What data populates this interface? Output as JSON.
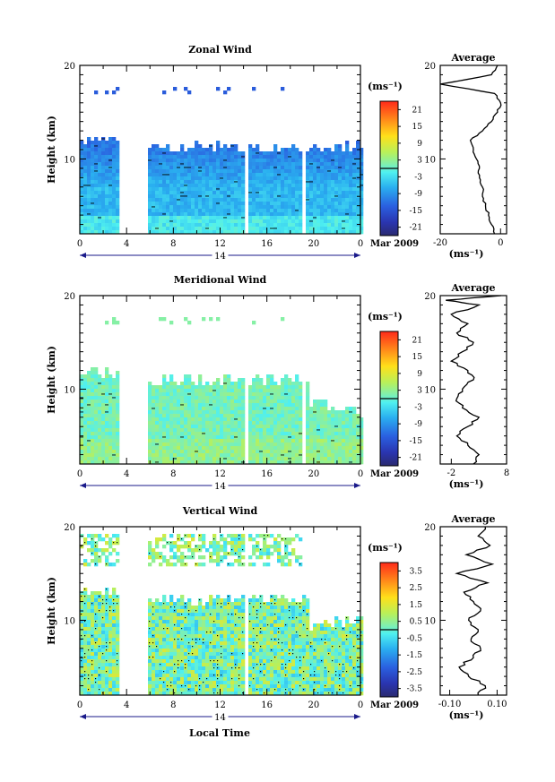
{
  "figure": {
    "x_label": "Local Time",
    "month_label": "Mar 2009",
    "day_label": "14",
    "profile_title": "Average",
    "unit": "(ms⁻¹)"
  },
  "chart_data": [
    {
      "type": "heatmap",
      "title": "Zonal Wind",
      "ylabel": "Height (km)",
      "xlabel": "Local Time",
      "x_ticks": [
        "0",
        "4",
        "8",
        "12",
        "16",
        "20",
        "0"
      ],
      "xlim": [
        0,
        24
      ],
      "y_ticks": [
        "20",
        "10"
      ],
      "ylim": [
        2,
        20
      ],
      "colorbar": {
        "unit": "(ms⁻¹)",
        "ticks": [
          "21",
          "15",
          "9",
          "3",
          "-3",
          "-9",
          "-15",
          "-21"
        ],
        "range": [
          -24,
          24
        ],
        "contour_at": 0
      },
      "missing_time_ranges": [
        [
          3.3,
          5.7
        ],
        [
          14.0,
          14.4
        ],
        [
          19.0,
          19.3
        ]
      ],
      "average_profile": {
        "x_ticks": [
          "-20",
          "0"
        ],
        "xlim": [
          -20,
          2
        ],
        "y_ticks": [
          "20",
          "10"
        ],
        "points": [
          [
            -2,
            2
          ],
          [
            -3,
            3
          ],
          [
            -4,
            4
          ],
          [
            -5,
            5
          ],
          [
            -6,
            6
          ],
          [
            -6,
            7
          ],
          [
            -7,
            8
          ],
          [
            -7,
            9
          ],
          [
            -8,
            10
          ],
          [
            -9,
            11
          ],
          [
            -10,
            12
          ],
          [
            -6,
            13
          ],
          [
            -3,
            14
          ],
          [
            -1,
            15
          ],
          [
            0,
            16
          ],
          [
            -2,
            17
          ],
          [
            -20,
            18
          ],
          [
            -3,
            19
          ],
          [
            -1,
            20
          ]
        ]
      }
    },
    {
      "type": "heatmap",
      "title": "Meridional Wind",
      "ylabel": "Height (km)",
      "xlabel": "Local Time",
      "x_ticks": [
        "0",
        "4",
        "8",
        "12",
        "16",
        "20",
        "0"
      ],
      "xlim": [
        0,
        24
      ],
      "y_ticks": [
        "20",
        "10"
      ],
      "ylim": [
        2,
        20
      ],
      "colorbar": {
        "unit": "(ms⁻¹)",
        "ticks": [
          "21",
          "15",
          "9",
          "3",
          "-3",
          "-9",
          "-15",
          "-21"
        ],
        "range": [
          -24,
          24
        ],
        "contour_at": 0
      },
      "missing_time_ranges": [
        [
          3.3,
          5.7
        ],
        [
          14.0,
          14.4
        ],
        [
          19.0,
          19.3
        ]
      ],
      "average_profile": {
        "x_ticks": [
          "-2",
          "8"
        ],
        "xlim": [
          -4,
          8
        ],
        "y_ticks": [
          "20",
          "10"
        ],
        "points": [
          [
            2,
            2
          ],
          [
            3,
            3
          ],
          [
            1,
            4
          ],
          [
            -1,
            5
          ],
          [
            1,
            6
          ],
          [
            3,
            7
          ],
          [
            0,
            8
          ],
          [
            -1,
            9
          ],
          [
            0,
            10
          ],
          [
            2,
            11
          ],
          [
            1,
            12
          ],
          [
            -2,
            13
          ],
          [
            0,
            14
          ],
          [
            2,
            15
          ],
          [
            -1,
            16
          ],
          [
            1,
            17
          ],
          [
            -2,
            18
          ],
          [
            3,
            19
          ],
          [
            -3,
            19.5
          ],
          [
            7,
            20
          ]
        ]
      }
    },
    {
      "type": "heatmap",
      "title": "Vertical Wind",
      "ylabel": "Height (km)",
      "xlabel": "Local Time",
      "x_ticks": [
        "0",
        "4",
        "8",
        "12",
        "16",
        "20",
        "0"
      ],
      "xlim": [
        0,
        24
      ],
      "y_ticks": [
        "20",
        "10"
      ],
      "ylim": [
        2,
        20
      ],
      "colorbar": {
        "unit": "(ms⁻¹)",
        "ticks": [
          "3.5",
          "2.5",
          "1.5",
          "0.5",
          "-0.5",
          "-1.5",
          "-2.5",
          "-3.5"
        ],
        "range": [
          -4,
          4
        ],
        "contour_at": 0
      },
      "missing_time_ranges": [
        [
          3.3,
          5.7
        ],
        [
          14.0,
          14.4
        ]
      ],
      "average_profile": {
        "x_ticks": [
          "-0.10",
          "0.10"
        ],
        "xlim": [
          -0.14,
          0.14
        ],
        "y_ticks": [
          "20",
          "10"
        ],
        "points": [
          [
            0.02,
            2
          ],
          [
            0.05,
            3
          ],
          [
            -0.02,
            4
          ],
          [
            -0.06,
            5
          ],
          [
            0.0,
            6
          ],
          [
            0.03,
            7
          ],
          [
            -0.01,
            8
          ],
          [
            0.02,
            9
          ],
          [
            -0.02,
            10
          ],
          [
            0.03,
            11
          ],
          [
            0.0,
            12
          ],
          [
            -0.04,
            13
          ],
          [
            0.06,
            14
          ],
          [
            -0.07,
            15
          ],
          [
            0.08,
            16
          ],
          [
            -0.03,
            17
          ],
          [
            0.07,
            18
          ],
          [
            0.02,
            19
          ],
          [
            0.05,
            20
          ]
        ]
      }
    }
  ]
}
